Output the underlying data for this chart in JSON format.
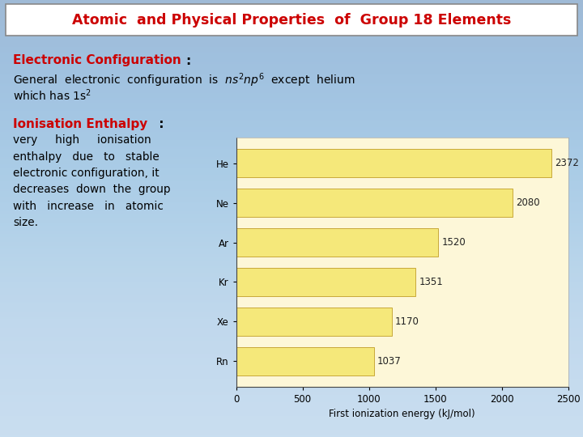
{
  "title": "Atomic  and Physical Properties  of  Group 18 Elements",
  "bg_color": "#c0d8ed",
  "title_color": "#cc0000",
  "title_fontsize": 12.5,
  "section1_label": "Electronic Configuration",
  "section1_color": "#cc0000",
  "section2_label": "Ionisation Enthalpy",
  "section2_color": "#cc0000",
  "body_text_fontsize": 10,
  "elements": [
    "He",
    "Ne",
    "Ar",
    "Kr",
    "Xe",
    "Rn"
  ],
  "values": [
    2372,
    2080,
    1520,
    1351,
    1170,
    1037
  ],
  "bar_color": "#f5e87a",
  "bar_edge_color": "#c8a83a",
  "bar_label_color": "#222222",
  "chart_bg": "#fdf7d8",
  "xlabel": "First ionization energy (kJ/mol)",
  "xlim": [
    0,
    2500
  ],
  "xticks": [
    0,
    500,
    1000,
    1500,
    2000,
    2500
  ],
  "bar_fontsize": 8.5,
  "axis_fontsize": 8.5,
  "label_fontsize": 8.5
}
